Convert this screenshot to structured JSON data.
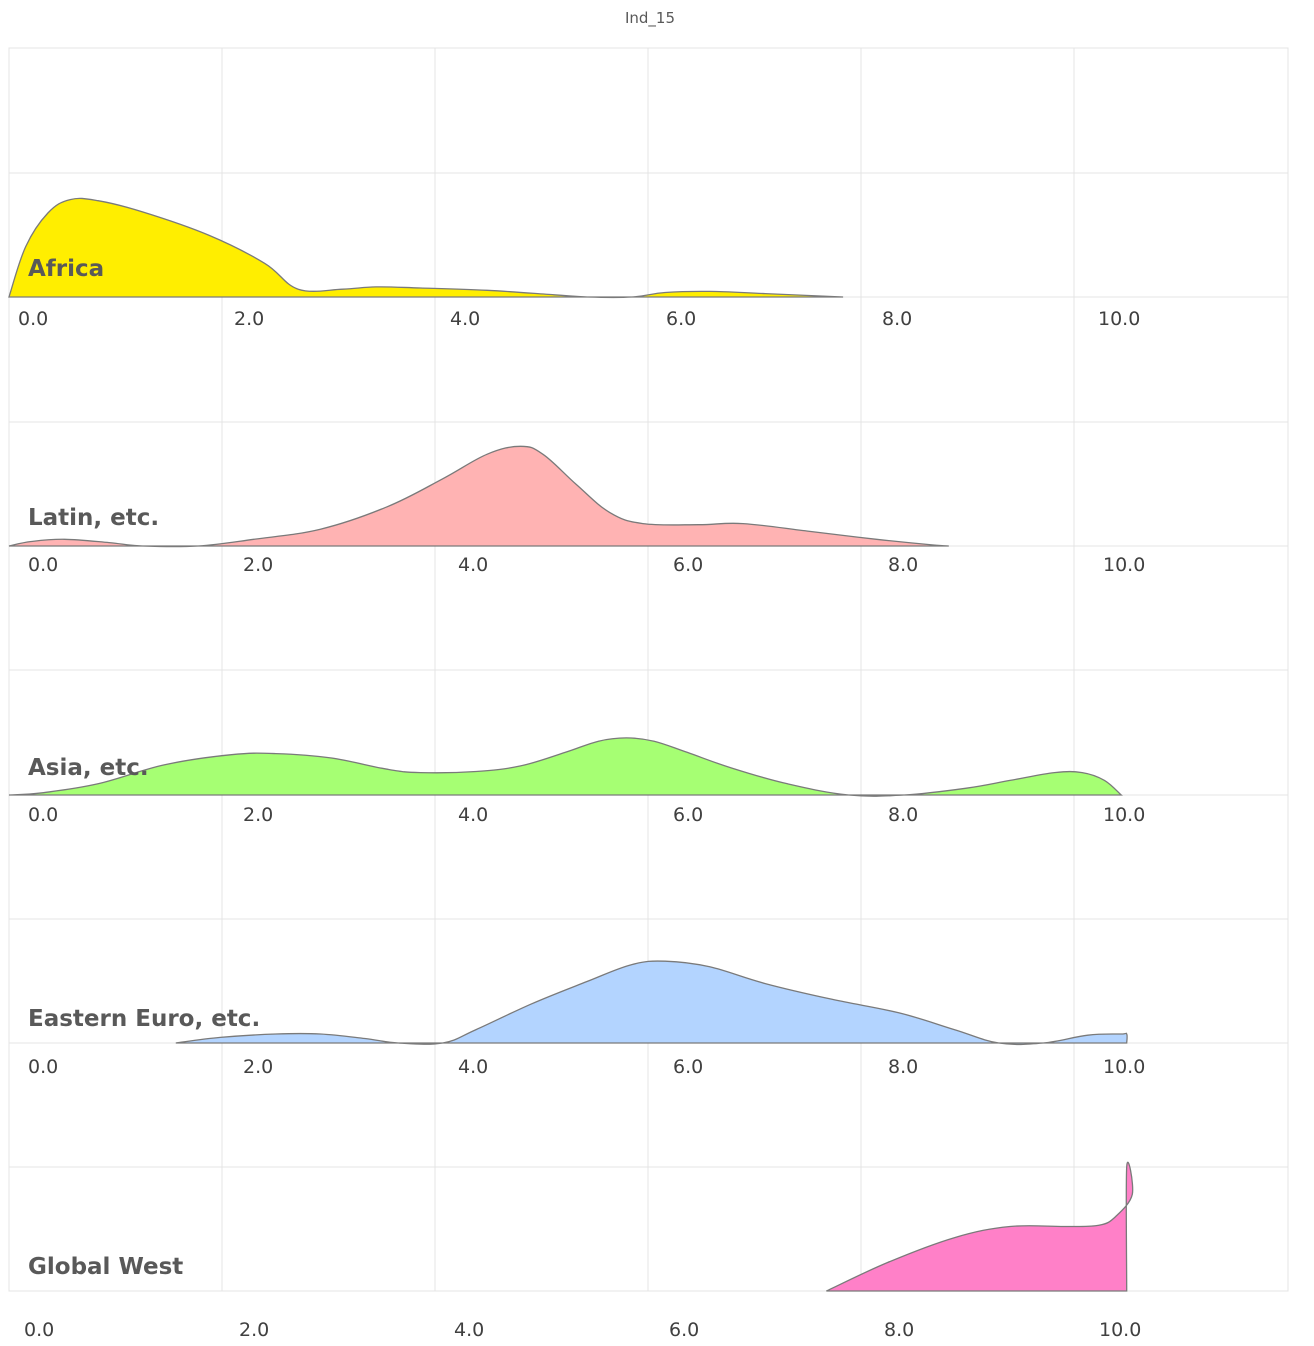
{
  "chart_data": {
    "type": "area",
    "title": "Ind_15",
    "xlabel": "",
    "ylabel": "",
    "xlim": [
      0,
      11.5
    ],
    "ylim": [
      0,
      1
    ],
    "grid": true,
    "tick_labels": [
      "0.0",
      "2.0",
      "4.0",
      "6.0",
      "8.0",
      "10.0"
    ],
    "tick_values": [
      0,
      2,
      4,
      6,
      8,
      10
    ],
    "series": [
      {
        "name": "Africa",
        "color": "#ffee00",
        "points": [
          [
            0,
            0
          ],
          [
            0.15,
            0.45
          ],
          [
            0.35,
            0.75
          ],
          [
            0.55,
            0.87
          ],
          [
            0.8,
            0.86
          ],
          [
            1.2,
            0.76
          ],
          [
            1.8,
            0.55
          ],
          [
            2.3,
            0.3
          ],
          [
            2.6,
            0.07
          ],
          [
            3,
            0.07
          ],
          [
            3.3,
            0.09
          ],
          [
            3.7,
            0.08
          ],
          [
            4.3,
            0.06
          ],
          [
            4.9,
            0.02
          ],
          [
            5.2,
            0
          ],
          [
            5.6,
            0
          ],
          [
            5.9,
            0.04
          ],
          [
            6.3,
            0.05
          ],
          [
            6.8,
            0.03
          ],
          [
            7.5,
            0
          ]
        ]
      },
      {
        "name": "Latin, etc.",
        "color": "#ffb3b3",
        "points": [
          [
            0,
            0
          ],
          [
            0.2,
            0.04
          ],
          [
            0.5,
            0.06
          ],
          [
            0.9,
            0.03
          ],
          [
            1.2,
            0
          ],
          [
            1.7,
            0
          ],
          [
            2.2,
            0.06
          ],
          [
            2.8,
            0.15
          ],
          [
            3.4,
            0.35
          ],
          [
            3.9,
            0.6
          ],
          [
            4.3,
            0.82
          ],
          [
            4.6,
            0.89
          ],
          [
            4.8,
            0.82
          ],
          [
            5.1,
            0.55
          ],
          [
            5.4,
            0.3
          ],
          [
            5.7,
            0.2
          ],
          [
            6.2,
            0.19
          ],
          [
            6.6,
            0.2
          ],
          [
            7.2,
            0.13
          ],
          [
            7.8,
            0.06
          ],
          [
            8.3,
            0.01
          ],
          [
            8.45,
            0
          ]
        ]
      },
      {
        "name": "Asia, etc.",
        "color": "#a6ff73",
        "points": [
          [
            0,
            0
          ],
          [
            0.3,
            0.02
          ],
          [
            0.8,
            0.1
          ],
          [
            1.4,
            0.27
          ],
          [
            2,
            0.36
          ],
          [
            2.4,
            0.37
          ],
          [
            2.9,
            0.33
          ],
          [
            3.4,
            0.23
          ],
          [
            3.7,
            0.2
          ],
          [
            4.2,
            0.21
          ],
          [
            4.6,
            0.26
          ],
          [
            5,
            0.38
          ],
          [
            5.3,
            0.48
          ],
          [
            5.55,
            0.51
          ],
          [
            5.8,
            0.48
          ],
          [
            6.1,
            0.38
          ],
          [
            6.5,
            0.24
          ],
          [
            7,
            0.1
          ],
          [
            7.55,
            0
          ],
          [
            8.05,
            0
          ],
          [
            8.6,
            0.06
          ],
          [
            9,
            0.13
          ],
          [
            9.4,
            0.2
          ],
          [
            9.65,
            0.2
          ],
          [
            9.85,
            0.13
          ],
          [
            10,
            0
          ]
        ]
      },
      {
        "name": "Eastern Euro, etc.",
        "color": "#b3d4ff",
        "points": [
          [
            1.5,
            0
          ],
          [
            1.9,
            0.05
          ],
          [
            2.4,
            0.08
          ],
          [
            2.8,
            0.08
          ],
          [
            3.2,
            0.04
          ],
          [
            3.5,
            0
          ],
          [
            3.9,
            0
          ],
          [
            4.2,
            0.12
          ],
          [
            4.7,
            0.35
          ],
          [
            5.2,
            0.55
          ],
          [
            5.6,
            0.7
          ],
          [
            5.9,
            0.73
          ],
          [
            6.3,
            0.68
          ],
          [
            6.8,
            0.53
          ],
          [
            7.4,
            0.39
          ],
          [
            8,
            0.27
          ],
          [
            8.5,
            0.12
          ],
          [
            8.9,
            0
          ],
          [
            9.3,
            0
          ],
          [
            9.7,
            0.07
          ],
          [
            10,
            0.08
          ],
          [
            10.05,
            0.08
          ],
          [
            10.05,
            0
          ]
        ]
      },
      {
        "name": "Global West",
        "color": "#ff80c8",
        "points": [
          [
            7.35,
            0
          ],
          [
            7.9,
            0.23
          ],
          [
            8.5,
            0.43
          ],
          [
            9,
            0.52
          ],
          [
            9.5,
            0.52
          ],
          [
            9.8,
            0.53
          ],
          [
            9.95,
            0.6
          ],
          [
            10.1,
            0.78
          ],
          [
            10.05,
            1
          ],
          [
            10.05,
            0
          ]
        ]
      }
    ]
  }
}
